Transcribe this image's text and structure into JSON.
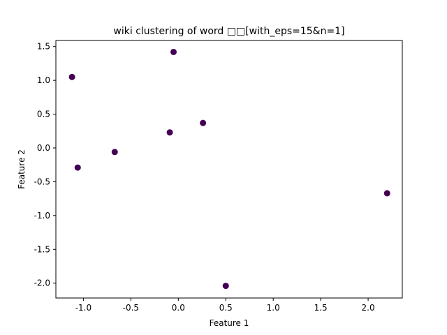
{
  "chart_data": {
    "type": "scatter",
    "title": "wiki clustering of word □□[with_eps=15&n=1]",
    "xlabel": "Feature 1",
    "ylabel": "Feature 2",
    "xlim": [
      -1.29,
      2.36
    ],
    "ylim": [
      -2.22,
      1.59
    ],
    "xticks": [
      -1.0,
      -0.5,
      0.0,
      0.5,
      1.0,
      1.5,
      2.0
    ],
    "xtick_labels": [
      "-1.0",
      "-0.5",
      "0.0",
      "0.5",
      "1.0",
      "1.5",
      "2.0"
    ],
    "yticks": [
      -2.0,
      -1.5,
      -1.0,
      -0.5,
      0.0,
      0.5,
      1.0,
      1.5
    ],
    "ytick_labels": [
      "-2.0",
      "-1.5",
      "-1.0",
      "-0.5",
      "0.0",
      "0.5",
      "1.0",
      "1.5"
    ],
    "grid": false,
    "point_color": "#440154",
    "points": [
      {
        "x": -1.12,
        "y": 1.05
      },
      {
        "x": -0.05,
        "y": 1.42
      },
      {
        "x": -0.09,
        "y": 0.23
      },
      {
        "x": 0.26,
        "y": 0.37
      },
      {
        "x": -0.67,
        "y": -0.06
      },
      {
        "x": -1.06,
        "y": -0.29
      },
      {
        "x": 2.2,
        "y": -0.67
      },
      {
        "x": 0.5,
        "y": -2.04
      }
    ]
  }
}
